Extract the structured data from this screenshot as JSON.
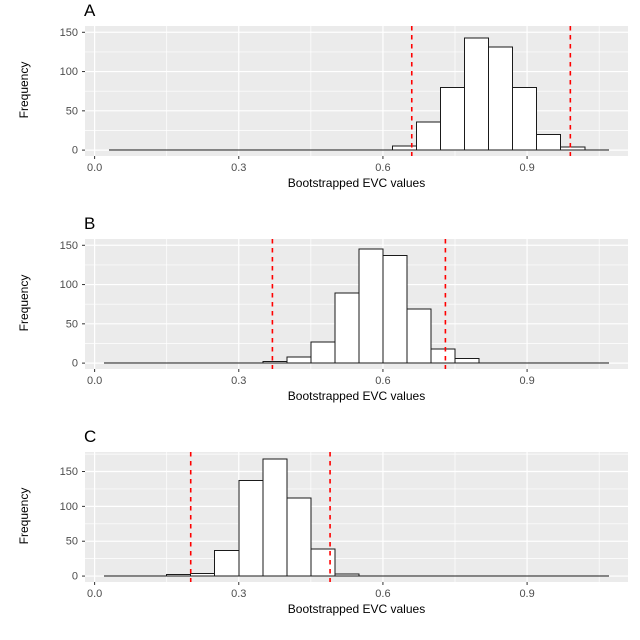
{
  "colors": {
    "panel_background": "#EBEBEB",
    "grid_major": "#FFFFFF",
    "grid_minor": "#FFFFFF",
    "bar_fill": "#FFFFFF",
    "bar_stroke": "#1A1A1A",
    "baseline": "#1A1A1A",
    "ci_line": "#FF0000",
    "tick_mark": "#333333",
    "tick_label": "#4D4D4D",
    "axis_label": "#000000"
  },
  "chart_data": [
    {
      "type": "bar",
      "subtype": "histogram",
      "panel_label": "A",
      "xlabel": "Bootstrapped EVC values",
      "ylabel": "Frequency",
      "bin_start": 0.62,
      "bin_width": 0.05,
      "counts": [
        5,
        36,
        80,
        143,
        131,
        80,
        20,
        4
      ],
      "ci_lines": [
        0.66,
        0.99
      ],
      "baseline_extent": [
        0.03,
        1.07
      ],
      "xticks": [
        0,
        0.3,
        0.6,
        0.9
      ],
      "xtick_labels": [
        "0.0",
        "0.3",
        "0.6",
        "0.9"
      ],
      "yticks": [
        0,
        50,
        100,
        150
      ],
      "ytick_labels": [
        "0",
        "50",
        "100",
        "150"
      ],
      "xdomain": [
        -0.02,
        1.11
      ],
      "ydomain": [
        -7.5,
        158
      ],
      "grid": true,
      "legend": "none"
    },
    {
      "type": "bar",
      "subtype": "histogram",
      "panel_label": "B",
      "xlabel": "Bootstrapped EVC values",
      "ylabel": "Frequency",
      "bin_start": 0.35,
      "bin_width": 0.05,
      "counts": [
        2,
        8,
        27,
        89,
        145,
        137,
        69,
        18,
        6
      ],
      "ci_lines": [
        0.37,
        0.73
      ],
      "baseline_extent": [
        0.02,
        1.07
      ],
      "xticks": [
        0,
        0.3,
        0.6,
        0.9
      ],
      "xtick_labels": [
        "0.0",
        "0.3",
        "0.6",
        "0.9"
      ],
      "yticks": [
        0,
        50,
        100,
        150
      ],
      "ytick_labels": [
        "0",
        "50",
        "100",
        "150"
      ],
      "xdomain": [
        -0.02,
        1.11
      ],
      "ydomain": [
        -7.5,
        158
      ],
      "grid": true,
      "legend": "none"
    },
    {
      "type": "bar",
      "subtype": "histogram",
      "panel_label": "C",
      "xlabel": "Bootstrapped EVC values",
      "ylabel": "Frequency",
      "bin_start": 0.15,
      "bin_width": 0.05,
      "counts": [
        2,
        4,
        37,
        137,
        168,
        112,
        39,
        3
      ],
      "ci_lines": [
        0.2,
        0.49
      ],
      "baseline_extent": [
        0.02,
        1.07
      ],
      "xticks": [
        0,
        0.3,
        0.6,
        0.9
      ],
      "xtick_labels": [
        "0.0",
        "0.3",
        "0.6",
        "0.9"
      ],
      "yticks": [
        0,
        50,
        100,
        150
      ],
      "ytick_labels": [
        "0",
        "50",
        "100",
        "150"
      ],
      "xdomain": [
        -0.02,
        1.11
      ],
      "ydomain": [
        -8.5,
        178
      ],
      "grid": true,
      "legend": "none"
    }
  ]
}
